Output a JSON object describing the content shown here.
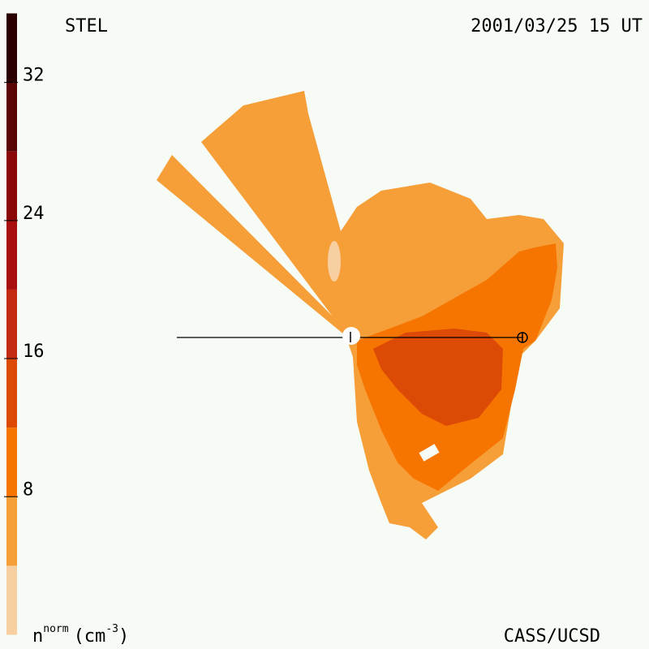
{
  "chart_data": {
    "type": "contour",
    "title": "STEL",
    "date": "2001/03/25 15 UT",
    "credit": "CASS/UCSD",
    "colorbar_label": [
      "n",
      "norm",
      "(cm",
      "-3",
      ")"
    ],
    "clim": [
      0,
      36
    ],
    "cticks": [
      8,
      16,
      24,
      32
    ],
    "levels": [
      0,
      4,
      8,
      12,
      16,
      20,
      24,
      28,
      32,
      36
    ],
    "level_colors": [
      "#f8cfa0",
      "#f69e38",
      "#f67500",
      "#dc4a06",
      "#c42a10",
      "#a81010",
      "#8a0808",
      "#5a0505",
      "#2a0000"
    ]
  }
}
